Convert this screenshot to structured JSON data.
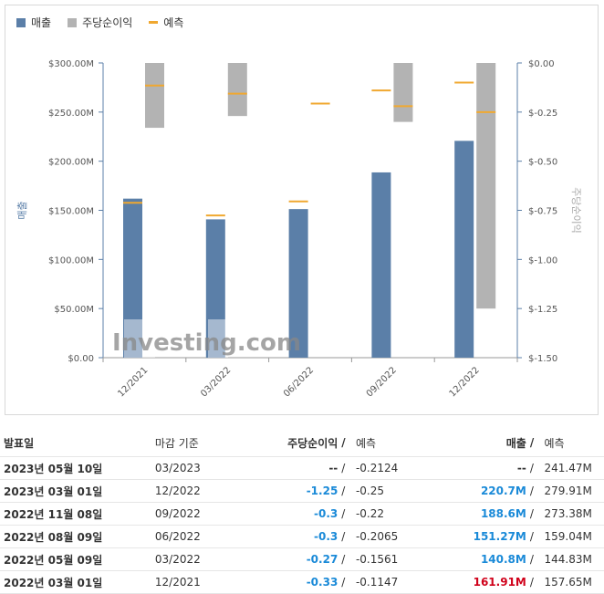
{
  "legend": [
    {
      "label": "매출",
      "color": "#5b7fa8"
    },
    {
      "label": "주당순이익",
      "color": "#b3b3b3"
    },
    {
      "label": "예측",
      "color": "#f0a830"
    }
  ],
  "chart_data": {
    "type": "bar",
    "categories": [
      "12/2021",
      "03/2022",
      "06/2022",
      "09/2022",
      "12/2022"
    ],
    "left_axis": {
      "label": "매출",
      "ticks": [
        "$300.00M",
        "$250.00M",
        "$200.00M",
        "$150.00M",
        "$100.00M",
        "$50.00M",
        "$0.00"
      ],
      "range": [
        0,
        300
      ]
    },
    "right_axis": {
      "label": "주당순이익",
      "ticks": [
        "$0.00",
        "$-0.25",
        "$-0.50",
        "$-0.75",
        "$-1.00",
        "$-1.25",
        "$-1.50"
      ],
      "range": [
        -1.5,
        0
      ]
    },
    "series": [
      {
        "name": "매출",
        "axis": "left",
        "values": [
          161.91,
          140.8,
          151.27,
          188.6,
          220.7
        ]
      },
      {
        "name": "주당순이익",
        "axis": "right",
        "values": [
          -0.33,
          -0.27,
          null,
          -0.3,
          -1.25
        ]
      }
    ],
    "forecast": {
      "name": "예측",
      "revenue": [
        157.65,
        144.83,
        159.04,
        null,
        null
      ],
      "eps": [
        -0.1147,
        -0.1561,
        -0.2065,
        -0.22,
        -0.25
      ],
      "eps_extra": [
        null,
        null,
        null,
        -0.14,
        -0.1
      ]
    },
    "watermark": "Investing.com"
  },
  "table": {
    "headers": {
      "date": "발표일",
      "period": "마감 기준",
      "eps": "주당순이익",
      "sep": "/",
      "eps_forecast": "예측",
      "revenue": "매출",
      "revenue_forecast": "예측"
    },
    "rows": [
      {
        "date": "2023년 05월 10일",
        "period": "03/2023",
        "eps": "--",
        "eps_forecast": "-0.2124",
        "revenue": "--",
        "revenue_forecast": "241.47M",
        "eps_color": "#333",
        "rev_color": "#333"
      },
      {
        "date": "2023년 03월 01일",
        "period": "12/2022",
        "eps": "-1.25",
        "eps_forecast": "-0.25",
        "revenue": "220.7M",
        "revenue_forecast": "279.91M",
        "eps_color": "#1a8ad8",
        "rev_color": "#1a8ad8"
      },
      {
        "date": "2022년 11월 08일",
        "period": "09/2022",
        "eps": "-0.3",
        "eps_forecast": "-0.22",
        "revenue": "188.6M",
        "revenue_forecast": "273.38M",
        "eps_color": "#1a8ad8",
        "rev_color": "#1a8ad8"
      },
      {
        "date": "2022년 08월 09일",
        "period": "06/2022",
        "eps": "-0.3",
        "eps_forecast": "-0.2065",
        "revenue": "151.27M",
        "revenue_forecast": "159.04M",
        "eps_color": "#1a8ad8",
        "rev_color": "#1a8ad8"
      },
      {
        "date": "2022년 05월 09일",
        "period": "03/2022",
        "eps": "-0.27",
        "eps_forecast": "-0.1561",
        "revenue": "140.8M",
        "revenue_forecast": "144.83M",
        "eps_color": "#1a8ad8",
        "rev_color": "#1a8ad8"
      },
      {
        "date": "2022년 03월 01일",
        "period": "12/2021",
        "eps": "-0.33",
        "eps_forecast": "-0.1147",
        "revenue": "161.91M",
        "revenue_forecast": "157.65M",
        "eps_color": "#1a8ad8",
        "rev_color": "#d0021b"
      }
    ]
  }
}
